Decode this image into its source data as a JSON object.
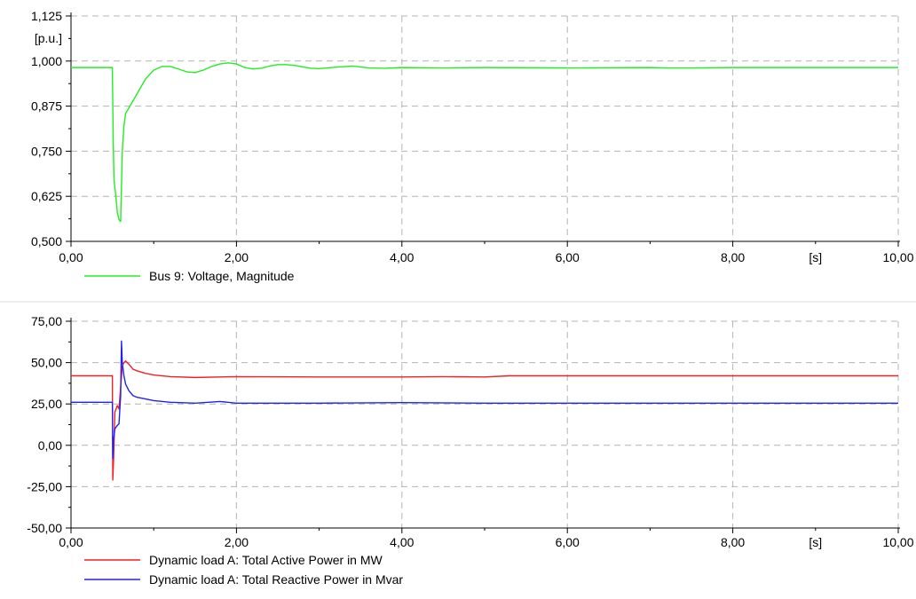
{
  "chart_data": [
    {
      "type": "line",
      "title": "",
      "xlabel": "",
      "xunit": "[s]",
      "yunit": "[p.u.]",
      "xlim": [
        0,
        10
      ],
      "ylim": [
        0.5,
        1.125
      ],
      "x_ticks": [
        {
          "v": 0,
          "label": "0,00"
        },
        {
          "v": 2,
          "label": "2,00"
        },
        {
          "v": 4,
          "label": "4,00"
        },
        {
          "v": 6,
          "label": "6,00"
        },
        {
          "v": 8,
          "label": "8,00"
        },
        {
          "v": 10,
          "label": "10,00"
        }
      ],
      "y_ticks": [
        {
          "v": 0.5,
          "label": "0,500"
        },
        {
          "v": 0.625,
          "label": "0,625"
        },
        {
          "v": 0.75,
          "label": "0,750"
        },
        {
          "v": 0.875,
          "label": "0,875"
        },
        {
          "v": 1.0,
          "label": "1,000"
        },
        {
          "v": 1.125,
          "label": "1,125"
        }
      ],
      "grid": true,
      "legend_position": "bottom-left",
      "series": [
        {
          "name": "Bus 9: Voltage, Magnitude",
          "color": "#22ee22",
          "x": [
            0,
            0.5,
            0.51,
            0.52,
            0.54,
            0.56,
            0.58,
            0.6,
            0.62,
            0.64,
            0.66,
            0.7,
            0.8,
            0.9,
            1.0,
            1.1,
            1.2,
            1.3,
            1.4,
            1.5,
            1.6,
            1.7,
            1.8,
            1.9,
            2.0,
            2.1,
            2.2,
            2.3,
            2.4,
            2.5,
            2.6,
            2.7,
            2.8,
            2.9,
            3.0,
            3.2,
            3.4,
            3.6,
            3.8,
            4.0,
            4.5,
            5.0,
            6.0,
            7.0,
            7.2,
            7.5,
            8.0,
            9.0,
            10.0
          ],
          "y": [
            0.982,
            0.982,
            0.78,
            0.67,
            0.63,
            0.58,
            0.56,
            0.555,
            0.75,
            0.82,
            0.855,
            0.87,
            0.91,
            0.95,
            0.975,
            0.985,
            0.985,
            0.978,
            0.97,
            0.968,
            0.975,
            0.985,
            0.992,
            0.995,
            0.992,
            0.982,
            0.978,
            0.98,
            0.986,
            0.99,
            0.99,
            0.988,
            0.984,
            0.98,
            0.979,
            0.983,
            0.986,
            0.981,
            0.98,
            0.982,
            0.981,
            0.982,
            0.981,
            0.982,
            0.981,
            0.981,
            0.982,
            0.982,
            0.982
          ]
        }
      ]
    },
    {
      "type": "line",
      "title": "",
      "xlabel": "",
      "xunit": "[s]",
      "yunit": "",
      "xlim": [
        0,
        10
      ],
      "ylim": [
        -50,
        75
      ],
      "x_ticks": [
        {
          "v": 0,
          "label": "0,00"
        },
        {
          "v": 2,
          "label": "2,00"
        },
        {
          "v": 4,
          "label": "4,00"
        },
        {
          "v": 6,
          "label": "6,00"
        },
        {
          "v": 8,
          "label": "8,00"
        },
        {
          "v": 10,
          "label": "10,00"
        }
      ],
      "y_ticks": [
        {
          "v": -50,
          "label": "-50,00"
        },
        {
          "v": -25,
          "label": "-25,00"
        },
        {
          "v": 0,
          "label": "0,00"
        },
        {
          "v": 25,
          "label": "25,00"
        },
        {
          "v": 50,
          "label": "50,00"
        },
        {
          "v": 75,
          "label": "75,00"
        }
      ],
      "grid": true,
      "legend_position": "bottom-left",
      "series": [
        {
          "name": "Dynamic load A: Total Active Power in MW",
          "color": "#ee2222",
          "x": [
            0,
            0.5,
            0.505,
            0.515,
            0.53,
            0.56,
            0.58,
            0.6,
            0.62,
            0.64,
            0.66,
            0.7,
            0.75,
            0.8,
            0.9,
            1.0,
            1.2,
            1.5,
            2.0,
            3.0,
            4.0,
            4.5,
            5.0,
            5.3,
            6.0,
            8.0,
            10.0
          ],
          "y": [
            42,
            42,
            -21,
            -8,
            20,
            24,
            22,
            35,
            48,
            50,
            51,
            49,
            46,
            45,
            43.5,
            42.5,
            41.5,
            41,
            41.5,
            41.3,
            41.3,
            41.5,
            41.3,
            42,
            42,
            42,
            42
          ]
        },
        {
          "name": "Dynamic load A: Total Reactive Power in Mvar",
          "color": "#2222ee",
          "x": [
            0,
            0.5,
            0.505,
            0.515,
            0.53,
            0.56,
            0.58,
            0.6,
            0.61,
            0.62,
            0.64,
            0.66,
            0.7,
            0.75,
            0.8,
            0.9,
            1.0,
            1.2,
            1.5,
            1.8,
            2.0,
            3.0,
            4.0,
            5.0,
            6.0,
            8.0,
            10.0
          ],
          "y": [
            26,
            26,
            -8,
            3,
            10,
            12,
            13,
            30,
            63,
            50,
            42,
            37,
            33,
            30,
            29,
            28,
            27,
            26,
            25.5,
            26.5,
            25.5,
            25.5,
            25.8,
            25.5,
            25.5,
            25.5,
            25.5
          ]
        }
      ]
    }
  ]
}
